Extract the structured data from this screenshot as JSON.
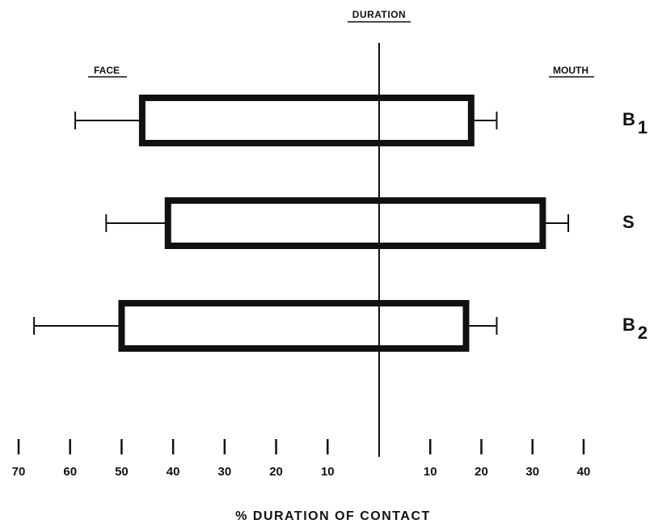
{
  "chart_data": {
    "type": "bar",
    "orientation": "horizontal",
    "title": "DURATION",
    "xlabel": "% DURATION OF CONTACT",
    "side_labels": {
      "left": "FACE",
      "right": "MOUTH"
    },
    "x_axis": {
      "left_ticks": [
        70,
        60,
        50,
        40,
        30,
        20,
        10
      ],
      "right_ticks": [
        10,
        20,
        30,
        40
      ],
      "left_range": [
        0,
        70
      ],
      "right_range": [
        0,
        40
      ]
    },
    "rows": [
      {
        "name": "B",
        "sub": "1",
        "face": 46,
        "face_err": 59,
        "mouth": 18,
        "mouth_err": 23
      },
      {
        "name": "S",
        "sub": "",
        "face": 41,
        "face_err": 53,
        "mouth": 32,
        "mouth_err": 37
      },
      {
        "name": "B",
        "sub": "2",
        "face": 50,
        "face_err": 67,
        "mouth": 17,
        "mouth_err": 23
      }
    ],
    "colors": {
      "ink": "#111111",
      "background": "#ffffff"
    }
  }
}
